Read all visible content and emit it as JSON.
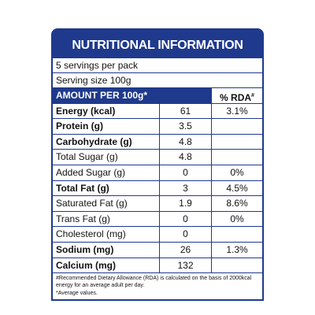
{
  "title": "NUTRITIONAL INFORMATION",
  "servings": "5 servings per pack",
  "serving_size": "Serving size 100g",
  "header": {
    "amount": "AMOUNT PER 100g*",
    "rda": "% RDA",
    "rda_mark": "#"
  },
  "rows": [
    {
      "label": "Energy (kcal)",
      "amount": "61",
      "rda": "3.1%",
      "bold": true
    },
    {
      "label": "Protein (g)",
      "amount": "3.5",
      "rda": null,
      "bold": true
    },
    {
      "label": "Carbohydrate (g)",
      "amount": "4.8",
      "rda": null,
      "bold": true
    },
    {
      "label": "Total Sugar (g)",
      "amount": "4.8",
      "rda": null,
      "bold": false
    },
    {
      "label": "Added Sugar (g)",
      "amount": "0",
      "rda": "0%",
      "bold": false
    },
    {
      "label": "Total Fat (g)",
      "amount": "3",
      "rda": "4.5%",
      "bold": true
    },
    {
      "label": "Saturated Fat (g)",
      "amount": "1.9",
      "rda": "8.6%",
      "bold": false
    },
    {
      "label": "Trans Fat (g)",
      "amount": "0",
      "rda": "0%",
      "bold": false
    },
    {
      "label": "Cholesterol (mg)",
      "amount": "0",
      "rda": null,
      "bold": false
    },
    {
      "label": "Sodium (mg)",
      "amount": "26",
      "rda": "1.3%",
      "bold": true
    },
    {
      "label": "Calcium (mg)",
      "amount": "132",
      "rda": null,
      "bold": true
    }
  ],
  "footnotes": [
    "#Recommended Dietary Allowance (RDA) is calculated on the basis of 2000kcal energy for an average adult per day.",
    "*Average values."
  ]
}
